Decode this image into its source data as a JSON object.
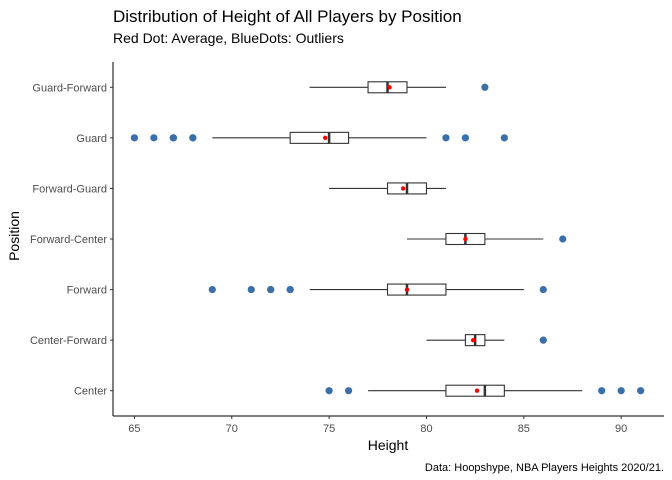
{
  "chart_data": {
    "type": "boxplot",
    "orientation": "horizontal",
    "title": "Distribution of Height of All Players by Position",
    "subtitle": "Red Dot: Average, BlueDots: Outliers",
    "xlabel": "Height",
    "ylabel": "Position",
    "caption": "Data: Hoopshype, NBA Players Heights 2020/21.",
    "xlim": [
      63.9,
      92.2
    ],
    "xticks": [
      65,
      70,
      75,
      80,
      85,
      90
    ],
    "grid": false,
    "colors": {
      "box_fill": "#ffffff",
      "box_line": "#333333",
      "mean": "#ff0000",
      "outlier": "#3a6fa8",
      "axis": "#000000"
    },
    "categories": [
      "Guard-Forward",
      "Guard",
      "Forward-Guard",
      "Forward-Center",
      "Forward",
      "Center-Forward",
      "Center"
    ],
    "boxes": [
      {
        "category": "Guard-Forward",
        "min": 74,
        "q1": 77,
        "median": 78,
        "q3": 79,
        "max": 81,
        "mean": 78.1,
        "outliers": [
          83
        ]
      },
      {
        "category": "Guard",
        "min": 69,
        "q1": 73,
        "median": 75,
        "q3": 76,
        "max": 80,
        "mean": 74.8,
        "outliers": [
          65,
          66,
          67,
          67,
          68,
          68,
          81,
          82,
          84
        ]
      },
      {
        "category": "Forward-Guard",
        "min": 75,
        "q1": 78,
        "median": 79,
        "q3": 80,
        "max": 81,
        "mean": 78.8,
        "outliers": []
      },
      {
        "category": "Forward-Center",
        "min": 79,
        "q1": 81,
        "median": 82,
        "q3": 83,
        "max": 86,
        "mean": 82.0,
        "outliers": [
          87
        ]
      },
      {
        "category": "Forward",
        "min": 74,
        "q1": 78,
        "median": 79,
        "q3": 81,
        "max": 85,
        "mean": 79.0,
        "outliers": [
          69,
          71,
          72,
          72,
          73,
          73,
          86
        ]
      },
      {
        "category": "Center-Forward",
        "min": 80,
        "q1": 82,
        "median": 82.5,
        "q3": 83,
        "max": 84,
        "mean": 82.4,
        "outliers": [
          86
        ]
      },
      {
        "category": "Center",
        "min": 77,
        "q1": 81,
        "median": 83,
        "q3": 84,
        "max": 88,
        "mean": 82.6,
        "outliers": [
          75,
          76,
          89,
          90,
          91
        ]
      }
    ]
  }
}
